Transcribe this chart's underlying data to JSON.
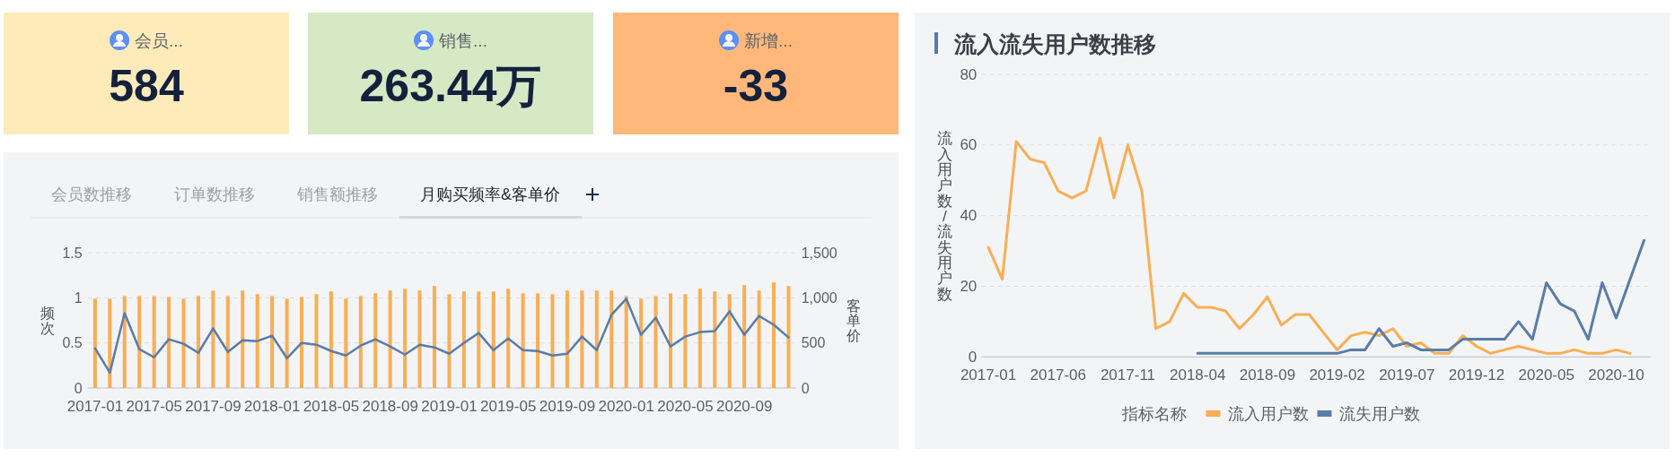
{
  "chart_data": [
    {
      "type": "other",
      "title": "会员...",
      "annotations": [
        "584"
      ]
    },
    {
      "type": "other",
      "title": "销售...",
      "annotations": [
        "263.44万"
      ]
    },
    {
      "type": "other",
      "title": "新增...",
      "annotations": [
        "-33"
      ]
    },
    {
      "type": "bar",
      "title": "月购买频率&客单价",
      "annotations": [
        "会员数推移",
        "订单数推移",
        "销售额推移"
      ],
      "ylabel": "频次",
      "y2label": "客单价",
      "ylim": [
        0,
        1.5
      ],
      "yticks": [
        0,
        0.5,
        1,
        1.5
      ],
      "y2lim": [
        0,
        1500
      ],
      "y2ticks": [
        0,
        500,
        {
          "value": 1000,
          "label": "1,000"
        },
        {
          "value": 1500,
          "label": "1,500"
        }
      ],
      "grid": "y",
      "categories": [
        "2017-01",
        null,
        null,
        null,
        "2017-05",
        null,
        null,
        null,
        "2017-09",
        null,
        null,
        null,
        "2018-01",
        null,
        null,
        null,
        "2018-05",
        null,
        null,
        null,
        "2018-09",
        null,
        null,
        null,
        "2019-01",
        null,
        null,
        null,
        "2019-05",
        null,
        null,
        null,
        "2019-09",
        null,
        null,
        null,
        "2020-01",
        null,
        null,
        null,
        "2020-05",
        null,
        null,
        null,
        "2020-09",
        null,
        null,
        null
      ],
      "series": [
        {
          "type": "bar",
          "color": "#f9ae54",
          "values": [
            0.99,
            0.99,
            1.02,
            1.02,
            1.02,
            1.01,
            0.99,
            1.02,
            1.08,
            1.02,
            1.08,
            1.04,
            1.02,
            0.99,
            1.01,
            1.04,
            1.07,
            0.99,
            1.02,
            1.05,
            1.08,
            1.1,
            1.08,
            1.13,
            1.04,
            1.07,
            1.07,
            1.07,
            1.1,
            1.05,
            1.05,
            1.04,
            1.08,
            1.08,
            1.08,
            1.08,
            1.02,
            0.99,
            1.02,
            1.05,
            1.04,
            1.1,
            1.07,
            1.04,
            1.14,
            1.08,
            1.17,
            1.13
          ]
        },
        {
          "type": "line",
          "axis": "y2",
          "color": "#5a7ca8",
          "values": [
            440,
            170,
            830,
            430,
            340,
            540,
            490,
            390,
            660,
            400,
            530,
            520,
            580,
            330,
            500,
            480,
            410,
            360,
            470,
            540,
            460,
            370,
            480,
            450,
            380,
            500,
            610,
            420,
            550,
            420,
            410,
            360,
            380,
            570,
            420,
            810,
            990,
            590,
            780,
            460,
            570,
            620,
            630,
            850,
            590,
            800,
            700,
            560
          ]
        }
      ]
    },
    {
      "type": "line",
      "title": "流入流失用户数推移",
      "ylabel": "流入用户数/流失用户数",
      "ylim": [
        0,
        80
      ],
      "yticks": [
        0,
        20,
        40,
        60,
        80
      ],
      "grid": "y",
      "legend": "bottom",
      "legend_title": "指标名称",
      "categories": [
        "2017-01",
        null,
        null,
        null,
        null,
        "2017-06",
        null,
        null,
        null,
        null,
        "2017-11",
        null,
        null,
        null,
        null,
        "2018-04",
        null,
        null,
        null,
        null,
        "2018-09",
        null,
        null,
        null,
        null,
        "2019-02",
        null,
        null,
        null,
        null,
        "2019-07",
        null,
        null,
        null,
        null,
        "2019-12",
        null,
        null,
        null,
        null,
        "2020-05",
        null,
        null,
        null,
        null,
        "2020-10",
        null,
        null
      ],
      "series": [
        {
          "name": "流入用户数",
          "color": "#f9ae54",
          "values": [
            31,
            22,
            61,
            56,
            55,
            47,
            45,
            47,
            62,
            45,
            60,
            47,
            8,
            10,
            18,
            14,
            14,
            13,
            8,
            12,
            17,
            9,
            12,
            12,
            7,
            2,
            6,
            7,
            6,
            8,
            3,
            4,
            1,
            1,
            6,
            3,
            1,
            2,
            3,
            2,
            1,
            1,
            2,
            1,
            1,
            2,
            1,
            null
          ]
        },
        {
          "name": "流失用户数",
          "color": "#5a7ca8",
          "values": [
            null,
            null,
            null,
            null,
            null,
            null,
            null,
            null,
            null,
            null,
            null,
            null,
            null,
            null,
            null,
            1,
            1,
            1,
            1,
            1,
            1,
            1,
            1,
            1,
            1,
            1,
            2,
            2,
            8,
            3,
            4,
            2,
            2,
            2,
            5,
            5,
            5,
            5,
            10,
            5,
            21,
            15,
            13,
            5,
            21,
            11,
            22,
            33
          ]
        }
      ]
    }
  ]
}
